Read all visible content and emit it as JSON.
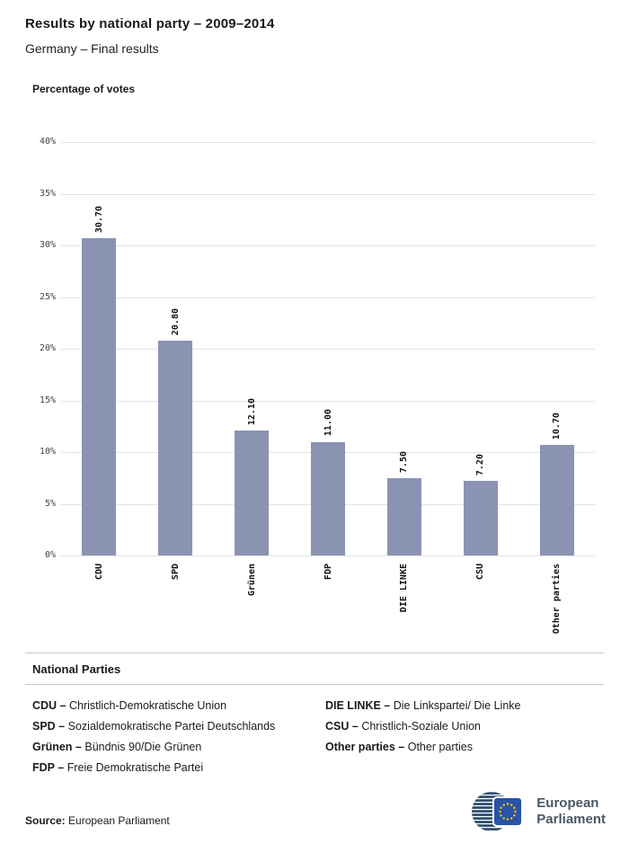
{
  "header": {
    "title": "Results by national party – 2009–2014",
    "subtitle": "Germany – Final results"
  },
  "chart_data": {
    "type": "bar",
    "title": "Percentage of votes",
    "categories": [
      "CDU",
      "SPD",
      "Grünen",
      "FDP",
      "DIE LINKE",
      "CSU",
      "Other parties"
    ],
    "values": [
      30.7,
      20.8,
      12.1,
      11.0,
      7.5,
      7.2,
      10.7
    ],
    "value_labels": [
      "30.70",
      "20.80",
      "12.10",
      "11.00",
      "7.50",
      "7.20",
      "10.70"
    ],
    "xlabel": "",
    "ylabel": "Percentage of votes",
    "ylim": [
      0,
      40
    ],
    "yticks": [
      "40%",
      "35%",
      "30%",
      "25%",
      "20%",
      "15%",
      "10%",
      "5%",
      "0%"
    ],
    "grid": true,
    "bar_color": "#8b93b3"
  },
  "parties": {
    "heading": "National Parties",
    "left": [
      {
        "term": "CDU –",
        "desc": "Christlich-Demokratische Union"
      },
      {
        "term": "SPD –",
        "desc": "Sozialdemokratische Partei Deutschlands"
      },
      {
        "term": "Grünen –",
        "desc": "Bündnis 90/Die Grünen"
      },
      {
        "term": "FDP –",
        "desc": "Freie Demokratische Partei"
      }
    ],
    "right": [
      {
        "term": "DIE LINKE –",
        "desc": "Die Linkspartei/ Die Linke"
      },
      {
        "term": "CSU –",
        "desc": "Christlich-Soziale Union"
      },
      {
        "term": "Other parties –",
        "desc": "Other parties"
      }
    ]
  },
  "footer": {
    "source_label": "Source:",
    "source_value": "European Parliament",
    "logo_line1": "European",
    "logo_line2": "Parliament"
  }
}
